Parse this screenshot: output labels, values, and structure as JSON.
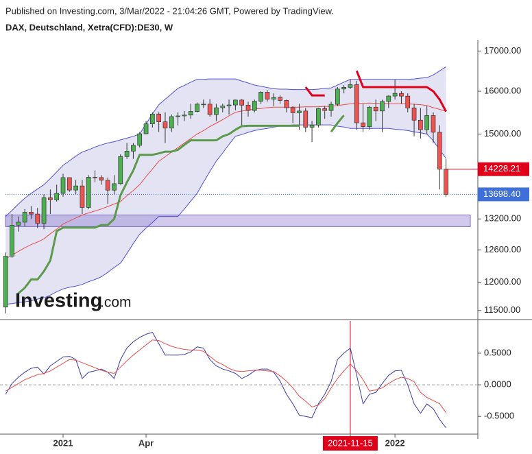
{
  "header": {
    "published": "Published on Investing.com, 3/Mar/2022 - 21:04:26 GMT, Powered by TradingView."
  },
  "watermark": {
    "brand": "Investing",
    "suffix": ".com"
  },
  "chart_data": [
    {
      "type": "candlestick",
      "title": "DAX, Deutschland, Xetra(CFD):DE30, W",
      "log": true,
      "ylim": [
        11344,
        17290
      ],
      "yticks": [
        {
          "value": 17000,
          "label": "17000.00"
        },
        {
          "value": 16000,
          "label": "16000.00"
        },
        {
          "value": 15000,
          "label": "15000.00"
        },
        {
          "value": 13200,
          "label": "13200.00"
        },
        {
          "value": 12600,
          "label": "12600.00"
        },
        {
          "value": 12000,
          "label": "12000.00"
        },
        {
          "value": 11500,
          "label": "11500.00"
        }
      ],
      "up_color": "#4caf50",
      "down_color": "#ef5350",
      "candles": [
        [
          11560,
          12550,
          11450,
          12480
        ],
        [
          12480,
          13300,
          12450,
          13077
        ],
        [
          13077,
          13250,
          12950,
          13137
        ],
        [
          13137,
          13400,
          13050,
          13335
        ],
        [
          13335,
          13460,
          13200,
          13298
        ],
        [
          13298,
          13420,
          13020,
          13114
        ],
        [
          13114,
          13700,
          13000,
          13630
        ],
        [
          13630,
          13800,
          13300,
          13587
        ],
        [
          13587,
          13900,
          13550,
          13719
        ],
        [
          13719,
          14130,
          13650,
          14049
        ],
        [
          14049,
          14050,
          13750,
          13788
        ],
        [
          13788,
          14000,
          13700,
          13873
        ],
        [
          13873,
          14000,
          13300,
          13432
        ],
        [
          13432,
          14100,
          13400,
          14056
        ],
        [
          14056,
          14200,
          13950,
          14050
        ],
        [
          14050,
          14100,
          13900,
          13993
        ],
        [
          13993,
          14050,
          13500,
          13786
        ],
        [
          13786,
          14100,
          13700,
          13920
        ],
        [
          13920,
          14550,
          13900,
          14502
        ],
        [
          14502,
          14800,
          14450,
          14621
        ],
        [
          14621,
          14800,
          14450,
          14749
        ],
        [
          14749,
          15050,
          14700,
          15008
        ],
        [
          15008,
          15300,
          15000,
          15234
        ],
        [
          15234,
          15500,
          15150,
          15460
        ],
        [
          15460,
          15500,
          15050,
          15280
        ],
        [
          15280,
          15500,
          14800,
          15136
        ],
        [
          15136,
          15450,
          15050,
          15400
        ],
        [
          15400,
          15500,
          15200,
          15417
        ],
        [
          15417,
          15530,
          15300,
          15437
        ],
        [
          15437,
          15700,
          15350,
          15520
        ],
        [
          15520,
          15730,
          15500,
          15693
        ],
        [
          15693,
          15800,
          15600,
          15693
        ],
        [
          15693,
          15810,
          15400,
          15448
        ],
        [
          15448,
          15700,
          15300,
          15607
        ],
        [
          15607,
          15700,
          15500,
          15650
        ],
        [
          15650,
          15800,
          15450,
          15673
        ],
        [
          15673,
          15800,
          15550,
          15790
        ],
        [
          15790,
          15810,
          15200,
          15669
        ],
        [
          15669,
          15750,
          15400,
          15544
        ],
        [
          15544,
          15800,
          15500,
          15761
        ],
        [
          15761,
          16000,
          15700,
          15977
        ],
        [
          15977,
          16030,
          15750,
          15808
        ],
        [
          15808,
          15950,
          15650,
          15852
        ],
        [
          15852,
          15900,
          15700,
          15781
        ],
        [
          15781,
          15800,
          15500,
          15609
        ],
        [
          15609,
          15650,
          15250,
          15490
        ],
        [
          15490,
          15700,
          15100,
          15531
        ],
        [
          15531,
          15600,
          15050,
          15156
        ],
        [
          15156,
          15300,
          14820,
          15206
        ],
        [
          15206,
          15600,
          15150,
          15587
        ],
        [
          15587,
          15650,
          15350,
          15543
        ],
        [
          15543,
          15750,
          15400,
          15688
        ],
        [
          15688,
          16100,
          15650,
          16054
        ],
        [
          16054,
          16150,
          15950,
          16094
        ],
        [
          16094,
          16290,
          16050,
          16160
        ],
        [
          16160,
          16250,
          15100,
          15257
        ],
        [
          15257,
          15700,
          15050,
          15169
        ],
        [
          15169,
          15650,
          15100,
          15621
        ],
        [
          15621,
          15800,
          15300,
          15532
        ],
        [
          15532,
          15800,
          15050,
          15756
        ],
        [
          15756,
          15900,
          15600,
          15885
        ],
        [
          15885,
          16280,
          15800,
          15948
        ],
        [
          15948,
          16000,
          15700,
          15883
        ],
        [
          15883,
          15950,
          15500,
          15603
        ],
        [
          15603,
          15700,
          14950,
          15318
        ],
        [
          15318,
          15600,
          14900,
          15100
        ],
        [
          15100,
          15650,
          15000,
          15425
        ],
        [
          15425,
          15500,
          14800,
          15042
        ],
        [
          15042,
          15200,
          13800,
          14228
        ],
        [
          14228,
          14450,
          13650,
          13698
        ]
      ],
      "band_fill": "#e3e3f3",
      "series": [
        {
          "color": "#5050d8",
          "values": [
            13250,
            13370,
            13500,
            13620,
            13720,
            13810,
            13900,
            14030,
            14170,
            14310,
            14410,
            14510,
            14600,
            14650,
            14710,
            14760,
            14800,
            14830,
            14870,
            14910,
            14950,
            15000,
            15230,
            15460,
            15680,
            15810,
            15940,
            16070,
            16140,
            16220,
            16290,
            16290,
            16300,
            16300,
            16300,
            16300,
            16300,
            16250,
            16200,
            16150,
            16120,
            16090,
            16060,
            16050,
            16050,
            16040,
            16040,
            16040,
            16040,
            16050,
            16070,
            16080,
            16150,
            16220,
            16290,
            16290,
            16290,
            16290,
            16290,
            16290,
            16290,
            16290,
            16290,
            16290,
            16300,
            16320,
            16330,
            16400,
            16500,
            16600
          ]
        },
        {
          "color": "#5050d8",
          "values": [
            11610,
            11620,
            11640,
            11650,
            11670,
            11700,
            11720,
            11770,
            11830,
            11880,
            11910,
            11930,
            11960,
            12010,
            12050,
            12100,
            12180,
            12270,
            12350,
            12530,
            12720,
            12900,
            13020,
            13130,
            13250,
            13250,
            13250,
            13250,
            13400,
            13560,
            13720,
            13950,
            14180,
            14400,
            14580,
            14770,
            14950,
            14990,
            15040,
            15080,
            15110,
            15130,
            15160,
            15180,
            15190,
            15210,
            15210,
            15210,
            15210,
            15210,
            15210,
            15210,
            15180,
            15160,
            15130,
            15130,
            15130,
            15130,
            15130,
            15130,
            15130,
            15110,
            15100,
            15080,
            15050,
            15030,
            15000,
            14850,
            14650,
            14460
          ]
        },
        {
          "color": "#e84c4c",
          "values": [
            12430,
            12500,
            12570,
            12640,
            12700,
            12750,
            12810,
            12910,
            13000,
            13100,
            13160,
            13220,
            13280,
            13320,
            13360,
            13400,
            13450,
            13500,
            13550,
            13670,
            13780,
            13900,
            14070,
            14230,
            14400,
            14500,
            14600,
            14700,
            14800,
            14900,
            15000,
            15080,
            15170,
            15250,
            15330,
            15420,
            15500,
            15530,
            15550,
            15580,
            15590,
            15610,
            15620,
            15620,
            15620,
            15620,
            15620,
            15630,
            15630,
            15630,
            15640,
            15640,
            15660,
            15680,
            15700,
            15710,
            15710,
            15720,
            15710,
            15710,
            15700,
            15700,
            15700,
            15700,
            15690,
            15680,
            15660,
            15610,
            15570,
            15520
          ]
        },
        {
          "color": "#5a9a4a",
          "width": 3,
          "values": [
            null,
            null,
            11800,
            11900,
            12050,
            12050,
            12200,
            12400,
            12960,
            13030,
            13030,
            13030,
            13030,
            13030,
            13030,
            13080,
            13080,
            13200,
            13680,
            13950,
            14200,
            14540,
            14540,
            14540,
            14570,
            14610,
            14610,
            14650,
            14760,
            14860,
            14860,
            14860,
            14860,
            14860,
            14950,
            15000,
            15100,
            15180,
            15190,
            15190,
            15190,
            15190,
            15190,
            15190,
            15190,
            15190,
            15190,
            null,
            null,
            null,
            null,
            15050,
            15250,
            15430,
            null,
            null,
            null,
            null,
            null,
            null,
            null,
            null,
            null,
            null,
            null,
            null,
            null,
            null,
            null,
            null
          ]
        },
        {
          "color": "#e0001a",
          "width": 3,
          "values": [
            null,
            null,
            null,
            null,
            null,
            null,
            null,
            null,
            null,
            null,
            null,
            null,
            null,
            null,
            null,
            null,
            null,
            null,
            null,
            null,
            null,
            null,
            null,
            null,
            null,
            null,
            null,
            null,
            null,
            null,
            null,
            null,
            null,
            null,
            null,
            null,
            null,
            null,
            null,
            null,
            null,
            null,
            null,
            null,
            null,
            null,
            null,
            16100,
            15900,
            15900,
            15900,
            null,
            null,
            null,
            null,
            16500,
            16100,
            16100,
            16100,
            16100,
            16100,
            16100,
            16100,
            16100,
            16100,
            16100,
            16100,
            16000,
            15800,
            15520
          ]
        }
      ],
      "zone": [
        13050,
        13280
      ],
      "zone_color": "#7a68c8",
      "price_lines": [
        {
          "value": 14228.21,
          "label": "14228.21",
          "color": "#e0001a",
          "style": "solid"
        },
        {
          "value": 13698.4,
          "label": "13698.40",
          "color": "#3f6fd8",
          "style": "dotted"
        }
      ]
    },
    {
      "type": "line",
      "ylim": [
        -0.78,
        1.01
      ],
      "yticks": [
        {
          "value": 0.5,
          "label": "0.5000"
        },
        {
          "value": 0,
          "label": "0.0000"
        },
        {
          "value": -0.5,
          "label": "-0.5000"
        }
      ],
      "zero_line": true,
      "categories": [
        null,
        null,
        null,
        null,
        null,
        null,
        null,
        null,
        null,
        "2021",
        null,
        null,
        null,
        null,
        null,
        null,
        null,
        null,
        null,
        null,
        null,
        null,
        "Apr",
        null,
        null,
        null,
        null,
        null,
        null,
        null,
        null,
        null,
        null,
        null,
        null,
        null,
        null,
        null,
        null,
        null,
        null,
        null,
        null,
        null,
        null,
        null,
        null,
        null,
        null,
        null,
        null,
        null,
        null,
        null,
        "2021-11-15",
        null,
        null,
        null,
        null,
        null,
        null,
        "2022",
        null,
        null,
        null,
        null,
        null,
        null,
        null,
        null
      ],
      "crosshair": "2021-11-15",
      "crosshair_color": "#e0001a",
      "series": [
        {
          "color": "#3a3aa8",
          "values": [
            -0.15,
            0.02,
            0.12,
            0.2,
            0.26,
            0.28,
            0.17,
            0.3,
            0.37,
            0.44,
            0.45,
            0.4,
            0.1,
            0.2,
            0.22,
            0.25,
            0.2,
            0.1,
            0.4,
            0.58,
            0.68,
            0.75,
            0.8,
            0.83,
            0.65,
            0.47,
            0.47,
            0.47,
            0.48,
            0.52,
            0.6,
            0.58,
            0.4,
            0.3,
            0.25,
            0.22,
            0.18,
            0.1,
            0.15,
            0.22,
            0.25,
            0.25,
            0.2,
            0.06,
            -0.15,
            -0.3,
            -0.48,
            -0.5,
            -0.52,
            -0.3,
            -0.15,
            0.05,
            0.4,
            0.5,
            0.58,
            0.15,
            -0.3,
            -0.15,
            -0.12,
            0.02,
            0.15,
            0.22,
            0.23,
            0.0,
            -0.3,
            -0.45,
            -0.3,
            -0.38,
            -0.55,
            -0.68
          ]
        },
        {
          "color": "#e84c4c",
          "values": [
            -0.1,
            -0.04,
            0.02,
            0.08,
            0.12,
            0.16,
            0.18,
            0.22,
            0.28,
            0.34,
            0.4,
            0.39,
            0.35,
            0.31,
            0.27,
            0.23,
            0.2,
            0.18,
            0.28,
            0.38,
            0.47,
            0.55,
            0.63,
            0.71,
            0.7,
            0.65,
            0.61,
            0.58,
            0.56,
            0.55,
            0.55,
            0.53,
            0.45,
            0.37,
            0.32,
            0.26,
            0.22,
            0.21,
            0.22,
            0.23,
            0.23,
            0.22,
            0.21,
            0.14,
            0.06,
            -0.05,
            -0.18,
            -0.26,
            -0.35,
            -0.32,
            -0.22,
            -0.05,
            0.1,
            0.22,
            0.33,
            0.22,
            0.08,
            -0.1,
            -0.08,
            -0.05,
            0.02,
            0.08,
            0.12,
            0.1,
            0.05,
            -0.12,
            -0.2,
            -0.25,
            -0.3,
            -0.44
          ]
        }
      ]
    }
  ]
}
